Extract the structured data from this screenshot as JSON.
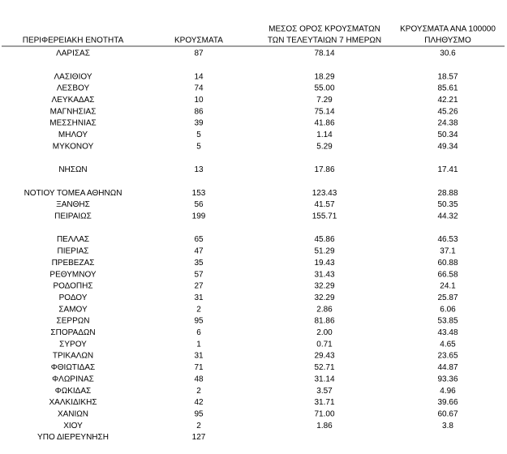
{
  "table": {
    "header": [
      [
        "ΠΕΡΙΦΕΡΕΙΑΚΗ ΕΝΟΤΗΤΑ"
      ],
      [
        "ΚΡΟΥΣΜΑΤΑ"
      ],
      [
        "ΜΕΣΟΣ ΟΡΟΣ ΚΡΟΥΣΜΑΤΩΝ",
        "ΤΩΝ ΤΕΛΕΥΤΑΙΩΝ 7 ΗΜΕΡΩΝ"
      ],
      [
        "ΚΡΟΥΣΜΑΤΑ ΑΝΑ 100000",
        "ΠΛΗΘΥΣΜΟ"
      ]
    ],
    "rows": [
      [
        "ΛΑΡΙΣΑΣ",
        "87",
        "78.14",
        "30.6"
      ],
      [
        "ΛΑΣΙΘΙΟΥ",
        "14",
        "18.29",
        "18.57"
      ],
      [
        "ΛΕΣΒΟΥ",
        "74",
        "55.00",
        "85.61"
      ],
      [
        "ΛΕΥΚΑΔΑΣ",
        "10",
        "7.29",
        "42.21"
      ],
      [
        "ΜΑΓΝΗΣΙΑΣ",
        "86",
        "75.14",
        "45.26"
      ],
      [
        "ΜΕΣΣΗΝΙΑΣ",
        "39",
        "41.86",
        "24.38"
      ],
      [
        "ΜΗΛΟΥ",
        "5",
        "1.14",
        "50.34"
      ],
      [
        "ΜΥΚΟΝΟΥ",
        "5",
        "5.29",
        "49.34"
      ],
      [
        "ΝΗΣΩΝ",
        "13",
        "17.86",
        "17.41"
      ],
      [
        "ΝΟΤΙΟΥ ΤΟΜΕΑ ΑΘΗΝΩΝ",
        "153",
        "123.43",
        "28.88"
      ],
      [
        "ΞΑΝΘΗΣ",
        "56",
        "41.57",
        "50.35"
      ],
      [
        "ΠΕΙΡΑΙΩΣ",
        "199",
        "155.71",
        "44.32"
      ],
      [
        "ΠΕΛΛΑΣ",
        "65",
        "45.86",
        "46.53"
      ],
      [
        "ΠΙΕΡΙΑΣ",
        "47",
        "51.29",
        "37.1"
      ],
      [
        "ΠΡΕΒΕΖΑΣ",
        "35",
        "19.43",
        "60.88"
      ],
      [
        "ΡΕΘΥΜΝΟΥ",
        "57",
        "31.43",
        "66.58"
      ],
      [
        "ΡΟΔΟΠΗΣ",
        "27",
        "32.29",
        "24.1"
      ],
      [
        "ΡΟΔΟΥ",
        "31",
        "32.29",
        "25.87"
      ],
      [
        "ΣΑΜΟΥ",
        "2",
        "2.86",
        "6.06"
      ],
      [
        "ΣΕΡΡΩΝ",
        "95",
        "81.86",
        "53.85"
      ],
      [
        "ΣΠΟΡΑΔΩΝ",
        "6",
        "2.00",
        "43.48"
      ],
      [
        "ΣΥΡΟΥ",
        "1",
        "0.71",
        "4.65"
      ],
      [
        "ΤΡΙΚΑΛΩΝ",
        "31",
        "29.43",
        "23.65"
      ],
      [
        "ΦΘΙΩΤΙΔΑΣ",
        "71",
        "52.71",
        "44.87"
      ],
      [
        "ΦΛΩΡΙΝΑΣ",
        "48",
        "31.14",
        "93.36"
      ],
      [
        "ΦΩΚΙΔΑΣ",
        "2",
        "3.57",
        "4.96"
      ],
      [
        "ΧΑΛΚΙΔΙΚΗΣ",
        "42",
        "31.71",
        "39.66"
      ],
      [
        "ΧΑΝΙΩΝ",
        "95",
        "71.00",
        "60.67"
      ],
      [
        "ΧΙΟΥ",
        "2",
        "1.86",
        "3.8"
      ],
      [
        "ΥΠΟ ΔΙΕΡΕΥΝΗΣΗ",
        "127"
      ]
    ]
  }
}
